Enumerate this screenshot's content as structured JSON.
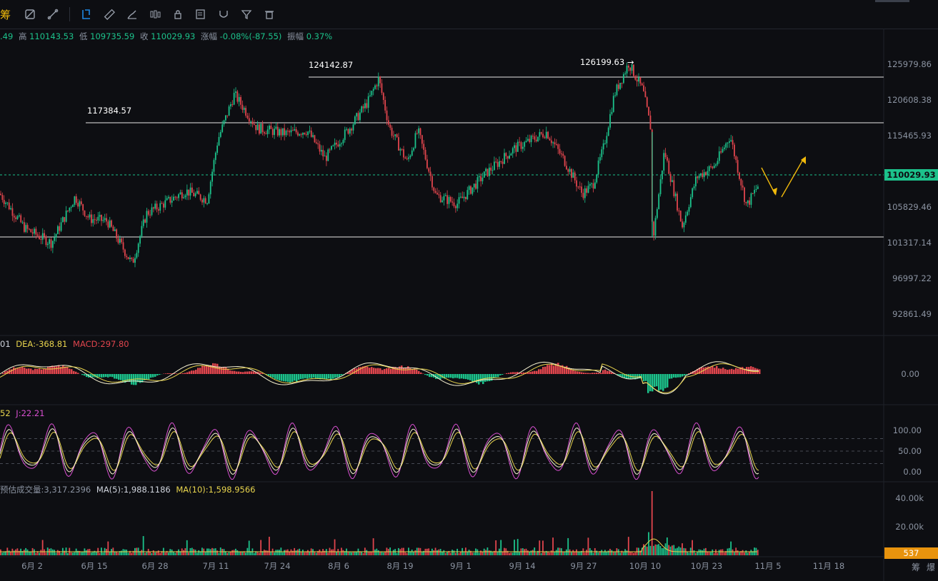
{
  "toolbar": {
    "logo_text": "筹",
    "icons": [
      "crosshair-off-icon",
      "tool-settings-icon",
      "indicator-settings-icon",
      "line-tool-icon",
      "ruler-icon",
      "brush-icon",
      "candlestick-type-icon",
      "lock-icon",
      "note-icon",
      "magnet-icon",
      "filter-icon",
      "trash-icon"
    ]
  },
  "ohlc": {
    "open_partial": ".49",
    "high_label": "高",
    "high": "110143.53",
    "low_label": "低",
    "low": "109735.59",
    "close_label": "收",
    "close": "110029.93",
    "change_label": "涨幅",
    "change": "-0.08%(-87.55)",
    "amp_label": "振幅",
    "amp": "0.37%"
  },
  "colors": {
    "up": "#1cc28b",
    "down": "#e0454d",
    "accent": "#f0b90b",
    "bg": "#0d0e12"
  },
  "chart_data": {
    "type": "candlestick",
    "price_axis": [
      "125979.86",
      "120608.38",
      "115465.93",
      "110029.93",
      "105829.46",
      "101317.14",
      "96997.22",
      "92861.49"
    ],
    "current_price": "110029.93",
    "date_axis": [
      "6月 2",
      "6月 15",
      "6月 28",
      "7月 11",
      "7月 24",
      "8月 6",
      "8月 19",
      "9月 1",
      "9月 14",
      "9月 27",
      "10月 10",
      "10月 23",
      "11月 5",
      "11月 18"
    ],
    "annotations": [
      "124142.87",
      "117384.57",
      "126199.63 →"
    ],
    "anchors": [
      [
        0,
        108800
      ],
      [
        35,
        104200
      ],
      [
        72,
        102300
      ],
      [
        105,
        108400
      ],
      [
        125,
        105500
      ],
      [
        150,
        105200
      ],
      [
        185,
        99500
      ],
      [
        205,
        106200
      ],
      [
        235,
        107800
      ],
      [
        260,
        109200
      ],
      [
        290,
        108000
      ],
      [
        305,
        116000
      ],
      [
        328,
        122000
      ],
      [
        360,
        117500
      ],
      [
        400,
        116800
      ],
      [
        430,
        117200
      ],
      [
        455,
        113500
      ],
      [
        490,
        117600
      ],
      [
        515,
        121000
      ],
      [
        530,
        124100
      ],
      [
        545,
        117600
      ],
      [
        570,
        113000
      ],
      [
        585,
        117200
      ],
      [
        610,
        108600
      ],
      [
        640,
        107500
      ],
      [
        680,
        111500
      ],
      [
        720,
        114800
      ],
      [
        745,
        116000
      ],
      [
        765,
        117000
      ],
      [
        790,
        113200
      ],
      [
        815,
        108800
      ],
      [
        830,
        110000
      ],
      [
        845,
        115000
      ],
      [
        860,
        122000
      ],
      [
        880,
        126100
      ],
      [
        900,
        122500
      ],
      [
        912,
        117000
      ],
      [
        913,
        102000
      ],
      [
        930,
        114500
      ],
      [
        955,
        104500
      ],
      [
        975,
        111000
      ],
      [
        1000,
        112500
      ],
      [
        1022,
        116500
      ],
      [
        1045,
        107200
      ],
      [
        1062,
        110030
      ]
    ]
  },
  "macd": {
    "label_dif_partial": "01",
    "dea_label": "DEA:",
    "dea": "-368.81",
    "macd_label": "MACD:",
    "macd": "297.80",
    "axis": [
      "0.00"
    ]
  },
  "kdj": {
    "label_d_partial": "52",
    "j_label": "J:",
    "j": "22.21",
    "axis": [
      "100.00",
      "50.00",
      "0.00"
    ]
  },
  "volume": {
    "est_label": "预估成交量:",
    "est": "3,317.2396",
    "ma5_label": "MA(5):",
    "ma5": "1,988.1186",
    "ma10_label": "MA(10):",
    "ma10": "1,598.9566",
    "axis": [
      "40.00k",
      "20.00k"
    ],
    "current": "537"
  },
  "footer_icons": [
    "筹",
    "爆"
  ]
}
